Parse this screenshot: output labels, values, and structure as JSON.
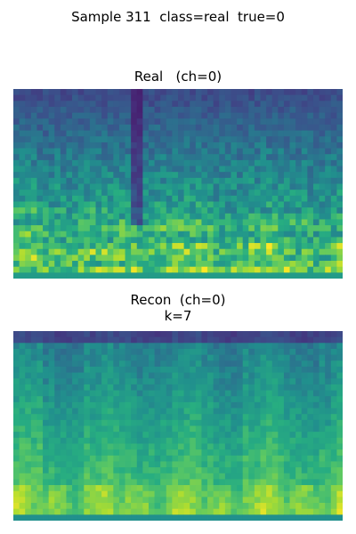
{
  "figure": {
    "suptitle": "Sample 311  class=real  true=0"
  },
  "panels": [
    {
      "title": "Real   (ch=0)",
      "subtitle": "",
      "colormap": "viridis",
      "grid_cols": 56,
      "grid_rows": 32,
      "seed": 311
    },
    {
      "title": "Recon  (ch=0)",
      "subtitle": "k=7",
      "colormap": "viridis",
      "grid_cols": 56,
      "grid_rows": 32,
      "seed": 7
    }
  ]
}
